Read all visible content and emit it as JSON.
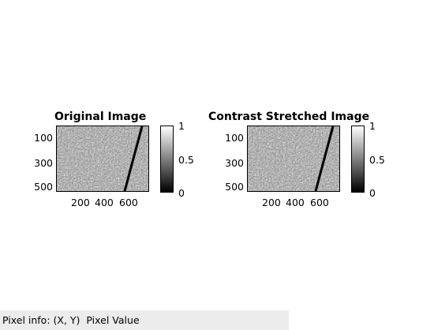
{
  "statusbar": {
    "label": "Pixel info:",
    "coords": "(X, Y)",
    "value": "Pixel Value"
  },
  "panels": [
    {
      "title": "Original Image",
      "y_ticks": [
        "100",
        "300",
        "500"
      ],
      "x_ticks": [
        "200",
        "400",
        "600"
      ],
      "colorbar_ticks": [
        "1",
        "0.5",
        "0"
      ]
    },
    {
      "title": "Contrast Stretched Image",
      "y_ticks": [
        "100",
        "300",
        "500"
      ],
      "x_ticks": [
        "200",
        "400",
        "600"
      ],
      "colorbar_ticks": [
        "1",
        "0.5",
        "0"
      ]
    }
  ],
  "colors": {
    "colormap_top": "#ffffff",
    "colormap_bottom": "#000000",
    "statusbar_bg": "#ececec"
  }
}
